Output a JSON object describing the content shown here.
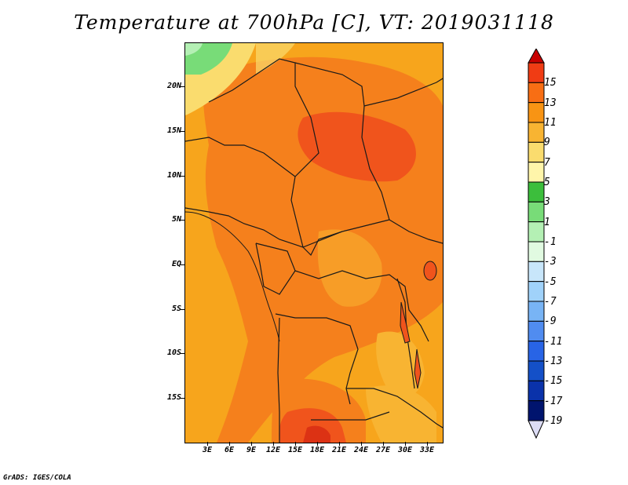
{
  "title": "Temperature at 700hPa [C], VT: 2019031118",
  "credit": "GrADS: IGES/COLA",
  "map": {
    "lat_labels": [
      "20N",
      "15N",
      "10N",
      "5N",
      "EQ",
      "5S",
      "10S",
      "15S"
    ],
    "lon_labels": [
      "3E",
      "6E",
      "9E",
      "12E",
      "15E",
      "18E",
      "21E",
      "24E",
      "27E",
      "30E",
      "33E"
    ]
  },
  "colorbar": {
    "labels": [
      "15",
      "13",
      "11",
      "9",
      "7",
      "5",
      "3",
      "1",
      "-1",
      "-3",
      "-5",
      "-7",
      "-9",
      "-11",
      "-13",
      "-15",
      "-17",
      "-19"
    ],
    "colors": [
      "#c80000",
      "#f03c14",
      "#f86e14",
      "#f89414",
      "#f8b432",
      "#fadc6e",
      "#fff5aa",
      "#3cbe3c",
      "#78dc78",
      "#b4f0b4",
      "#e1fae1",
      "#c8e6fa",
      "#a0d2fa",
      "#78b4f5",
      "#508cf0",
      "#2864e6",
      "#1450c8",
      "#0a32aa",
      "#00146e",
      "#dcdcf5"
    ]
  },
  "legend_ranges": {
    "warm_top": "15",
    "cold_bottom": "-19"
  }
}
